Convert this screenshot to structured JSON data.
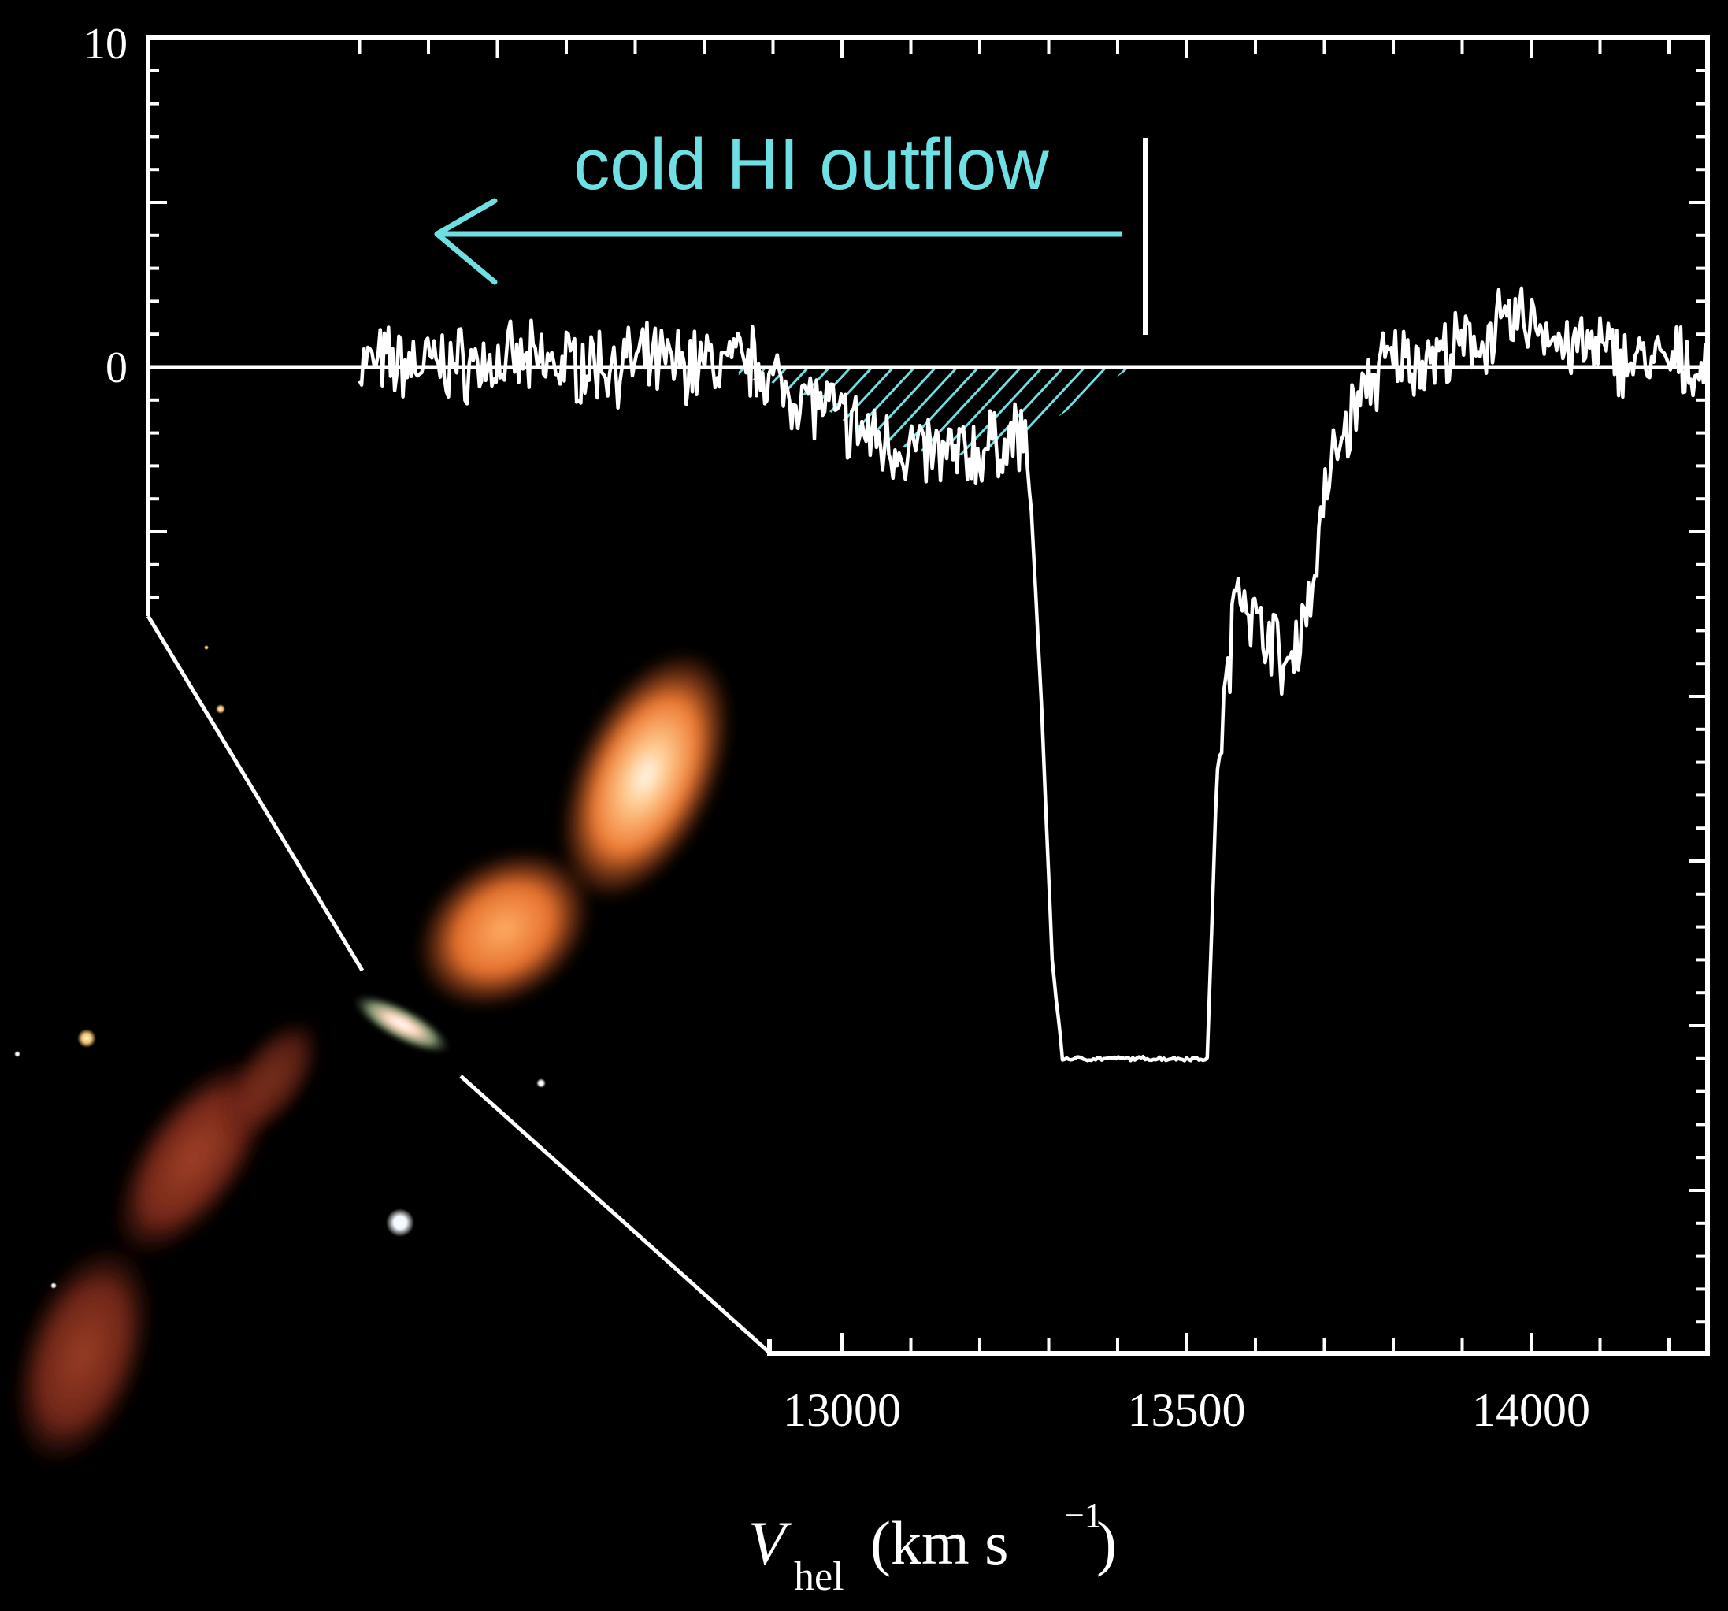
{
  "chart_data": {
    "type": "line",
    "title": "",
    "xlabel_main": "V",
    "xlabel_sub": "hel",
    "xlabel_units": "(km s",
    "xlabel_sup": "−1",
    "xlabel_close": ")",
    "x_ticks": [
      "13000",
      "13500",
      "14000"
    ],
    "y_ticks": [
      "10",
      "0"
    ],
    "xlim": [
      12890,
      14250
    ],
    "ylim_top": 10,
    "zero_level": 0,
    "annotation": {
      "text": "cold HI outflow",
      "arrow_direction": "left",
      "color": "#6ee0e3",
      "shaded_range": [
        12850,
        13420
      ],
      "marker_velocity": 13440
    },
    "series": [
      {
        "color": "#ffffff",
        "x": [
          12890,
          12950,
          13000,
          13050,
          13100,
          13150,
          13200,
          13230,
          13250,
          13265,
          13275,
          13290,
          13305,
          13320,
          13350,
          13400,
          13450,
          13500,
          13530,
          13545,
          13560,
          13575,
          13590,
          13600,
          13620,
          13635,
          13650,
          13665,
          13680,
          13700,
          13720,
          13740,
          13760,
          13780,
          13800,
          13850,
          13900,
          13950,
          14000,
          14050,
          14100,
          14150,
          14200,
          14250
        ],
        "y": [
          -0.4,
          -0.9,
          -1.6,
          -2.2,
          -2.5,
          -2.7,
          -2.6,
          -2.3,
          -2.1,
          -2.2,
          -4.4,
          -10.5,
          -18,
          -21,
          -21,
          -21,
          -21,
          -21,
          -21,
          -12,
          -9.5,
          -6.2,
          -7.0,
          -8.0,
          -7.8,
          -9.0,
          -9.1,
          -7.8,
          -7.0,
          -4.0,
          -2.3,
          -1.5,
          -0.6,
          -0.1,
          0.2,
          0.3,
          0.5,
          1.1,
          1.5,
          0.6,
          0.5,
          0.2,
          0.1,
          0.0
        ]
      }
    ]
  },
  "image_inset": {
    "type": "galaxy with radio lobes"
  }
}
